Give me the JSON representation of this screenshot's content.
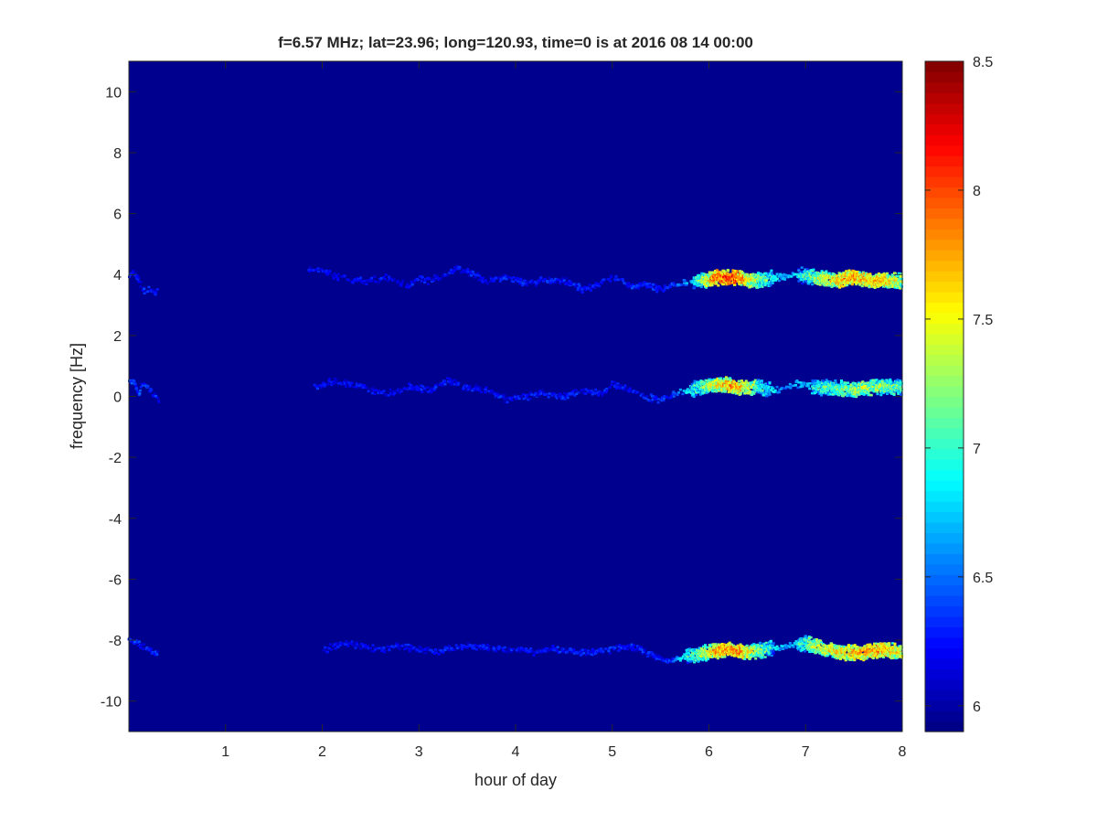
{
  "chart_data": {
    "type": "heatmap",
    "title": "f=6.57 MHz;  lat=23.96; long=120.93, time=0 is at 2016 08 14 00:00",
    "xlabel": "hour of day",
    "ylabel": "frequency [Hz]",
    "xlim": [
      0,
      8
    ],
    "ylim": [
      -11,
      11
    ],
    "xticks": [
      1,
      2,
      3,
      4,
      5,
      6,
      7,
      8
    ],
    "yticks": [
      -10,
      -8,
      -6,
      -4,
      -2,
      0,
      2,
      4,
      6,
      8,
      10
    ],
    "colormap": "jet",
    "background_color": "#00008f",
    "colorbar": {
      "clim": [
        5.9,
        8.5
      ],
      "ticks": [
        6,
        6.5,
        7,
        7.5,
        8,
        8.5
      ],
      "placement": "right"
    },
    "bands": [
      {
        "segments": [
          [
            0,
            0.3
          ],
          [
            1.85,
            8
          ]
        ],
        "points": [
          [
            0.0,
            3.9
          ],
          [
            0.05,
            4.1
          ],
          [
            0.1,
            3.8
          ],
          [
            0.15,
            3.5
          ],
          [
            0.2,
            3.5
          ],
          [
            0.25,
            3.4
          ],
          [
            1.9,
            4.2
          ],
          [
            2.0,
            4.1
          ],
          [
            2.1,
            4.0
          ],
          [
            2.3,
            3.8
          ],
          [
            2.5,
            3.8
          ],
          [
            2.7,
            3.9
          ],
          [
            2.9,
            3.6
          ],
          [
            3.0,
            3.9
          ],
          [
            3.1,
            3.8
          ],
          [
            3.3,
            4.0
          ],
          [
            3.4,
            4.2
          ],
          [
            3.5,
            4.1
          ],
          [
            3.7,
            3.8
          ],
          [
            3.9,
            3.9
          ],
          [
            4.1,
            3.7
          ],
          [
            4.3,
            3.8
          ],
          [
            4.5,
            3.8
          ],
          [
            4.7,
            3.5
          ],
          [
            4.8,
            3.6
          ],
          [
            5.0,
            3.9
          ],
          [
            5.2,
            3.6
          ],
          [
            5.3,
            3.7
          ],
          [
            5.5,
            3.5
          ],
          [
            5.7,
            3.7
          ],
          [
            5.9,
            3.8
          ],
          [
            6.1,
            3.9
          ],
          [
            6.3,
            3.9
          ],
          [
            6.5,
            3.8
          ],
          [
            6.7,
            3.9
          ],
          [
            6.9,
            4.0
          ],
          [
            7.1,
            3.9
          ],
          [
            7.3,
            3.8
          ],
          [
            7.5,
            3.9
          ],
          [
            7.7,
            3.8
          ],
          [
            7.9,
            3.8
          ],
          [
            8.0,
            3.8
          ]
        ],
        "intensity": [
          [
            0,
            6.3
          ],
          [
            0.3,
            6.3
          ],
          [
            1.85,
            6.2
          ],
          [
            5.5,
            6.3
          ],
          [
            5.8,
            6.7
          ],
          [
            6.05,
            7.9
          ],
          [
            6.25,
            8.1
          ],
          [
            6.5,
            7.3
          ],
          [
            6.8,
            6.6
          ],
          [
            7.1,
            7.3
          ],
          [
            7.4,
            7.8
          ],
          [
            7.8,
            7.7
          ],
          [
            8,
            7.4
          ]
        ]
      },
      {
        "segments": [
          [
            0,
            0.32
          ],
          [
            1.9,
            8
          ]
        ],
        "points": [
          [
            0.0,
            0.5
          ],
          [
            0.05,
            0.5
          ],
          [
            0.1,
            0.1
          ],
          [
            0.15,
            0.4
          ],
          [
            0.2,
            0.3
          ],
          [
            0.3,
            -0.1
          ],
          [
            1.95,
            0.3
          ],
          [
            2.1,
            0.5
          ],
          [
            2.3,
            0.4
          ],
          [
            2.5,
            0.2
          ],
          [
            2.7,
            0.1
          ],
          [
            2.9,
            0.3
          ],
          [
            3.1,
            0.2
          ],
          [
            3.3,
            0.5
          ],
          [
            3.5,
            0.3
          ],
          [
            3.7,
            0.2
          ],
          [
            3.9,
            -0.1
          ],
          [
            4.1,
            0.0
          ],
          [
            4.3,
            0.1
          ],
          [
            4.5,
            0.0
          ],
          [
            4.7,
            0.2
          ],
          [
            4.9,
            0.1
          ],
          [
            5.0,
            0.4
          ],
          [
            5.2,
            0.2
          ],
          [
            5.3,
            0.0
          ],
          [
            5.5,
            -0.1
          ],
          [
            5.7,
            0.1
          ],
          [
            5.9,
            0.3
          ],
          [
            6.1,
            0.4
          ],
          [
            6.3,
            0.3
          ],
          [
            6.5,
            0.3
          ],
          [
            6.7,
            0.2
          ],
          [
            6.9,
            0.4
          ],
          [
            7.1,
            0.3
          ],
          [
            7.3,
            0.3
          ],
          [
            7.5,
            0.2
          ],
          [
            7.7,
            0.3
          ],
          [
            7.9,
            0.3
          ],
          [
            8.0,
            0.3
          ]
        ],
        "intensity": [
          [
            0,
            6.4
          ],
          [
            0.32,
            6.3
          ],
          [
            1.9,
            6.2
          ],
          [
            5.6,
            6.3
          ],
          [
            5.85,
            7.0
          ],
          [
            6.1,
            7.6
          ],
          [
            6.3,
            7.8
          ],
          [
            6.5,
            7.2
          ],
          [
            6.8,
            6.5
          ],
          [
            7.2,
            7.1
          ],
          [
            7.6,
            7.4
          ],
          [
            8,
            7.1
          ]
        ]
      },
      {
        "segments": [
          [
            0,
            0.3
          ],
          [
            2.0,
            8
          ]
        ],
        "points": [
          [
            0.0,
            -8.0
          ],
          [
            0.1,
            -8.1
          ],
          [
            0.2,
            -8.3
          ],
          [
            0.3,
            -8.4
          ],
          [
            2.05,
            -8.3
          ],
          [
            2.2,
            -8.1
          ],
          [
            2.4,
            -8.2
          ],
          [
            2.6,
            -8.3
          ],
          [
            2.8,
            -8.2
          ],
          [
            3.0,
            -8.3
          ],
          [
            3.2,
            -8.4
          ],
          [
            3.4,
            -8.2
          ],
          [
            3.6,
            -8.2
          ],
          [
            3.8,
            -8.3
          ],
          [
            4.0,
            -8.3
          ],
          [
            4.2,
            -8.4
          ],
          [
            4.4,
            -8.3
          ],
          [
            4.6,
            -8.4
          ],
          [
            4.8,
            -8.4
          ],
          [
            5.0,
            -8.3
          ],
          [
            5.1,
            -8.2
          ],
          [
            5.3,
            -8.3
          ],
          [
            5.4,
            -8.5
          ],
          [
            5.6,
            -8.7
          ],
          [
            5.8,
            -8.5
          ],
          [
            6.0,
            -8.4
          ],
          [
            6.2,
            -8.3
          ],
          [
            6.4,
            -8.4
          ],
          [
            6.6,
            -8.3
          ],
          [
            6.8,
            -8.2
          ],
          [
            7.0,
            -8.1
          ],
          [
            7.2,
            -8.3
          ],
          [
            7.4,
            -8.4
          ],
          [
            7.6,
            -8.4
          ],
          [
            7.8,
            -8.3
          ],
          [
            8.0,
            -8.4
          ]
        ],
        "intensity": [
          [
            0,
            6.3
          ],
          [
            0.3,
            6.3
          ],
          [
            2.0,
            6.2
          ],
          [
            5.6,
            6.3
          ],
          [
            5.85,
            7.2
          ],
          [
            6.1,
            7.8
          ],
          [
            6.3,
            7.9
          ],
          [
            6.5,
            7.3
          ],
          [
            6.8,
            6.6
          ],
          [
            7.1,
            7.4
          ],
          [
            7.5,
            7.7
          ],
          [
            7.8,
            7.8
          ],
          [
            8,
            7.5
          ]
        ]
      }
    ]
  }
}
